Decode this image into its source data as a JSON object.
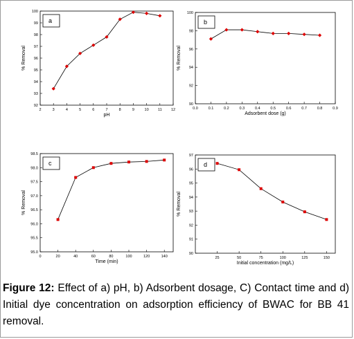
{
  "caption": {
    "label": "Figure 12:",
    "text": "Effect of a) pH, b) Adsorbent dosage, C) Contact time and d) Initial dye concentration on adsorption efficiency of BWAC for BB 41 removal."
  },
  "chart_data": [
    {
      "type": "line",
      "panel_label": "a",
      "xlabel": "pH",
      "ylabel": "% Removal",
      "xlim": [
        2,
        12
      ],
      "ylim": [
        92,
        100
      ],
      "xticks": [
        2,
        3,
        4,
        5,
        6,
        7,
        8,
        9,
        10,
        11,
        12
      ],
      "yticks": [
        92,
        93,
        94,
        95,
        96,
        97,
        98,
        99,
        100
      ],
      "x": [
        3,
        4,
        5,
        6,
        7,
        8,
        9,
        10,
        11
      ],
      "y": [
        93.4,
        95.3,
        96.4,
        97.1,
        97.8,
        99.3,
        99.9,
        99.8,
        99.6
      ],
      "color": "#dd0000",
      "marker": "diamond"
    },
    {
      "type": "line",
      "panel_label": "b",
      "xlabel": "Adsorbent dose (g)",
      "ylabel": "% Removal",
      "xlim": [
        0.0,
        0.9
      ],
      "ylim": [
        90,
        100
      ],
      "xticks": [
        "0.0",
        "0.1",
        "0.2",
        "0.3",
        "0.4",
        "0.5",
        "0.6",
        "0.7",
        "0.8",
        "0.9"
      ],
      "yticks": [
        90,
        92,
        94,
        96,
        98,
        100
      ],
      "x": [
        0.1,
        0.2,
        0.3,
        0.4,
        0.5,
        0.6,
        0.7,
        0.8
      ],
      "y": [
        97.1,
        98.1,
        98.1,
        97.9,
        97.7,
        97.7,
        97.6,
        97.5
      ],
      "color": "#dd0000",
      "marker": "diamond"
    },
    {
      "type": "line",
      "panel_label": "c",
      "xlabel": "Time (min)",
      "ylabel": "% Removal",
      "xlim": [
        0,
        150
      ],
      "ylim": [
        95.0,
        98.5
      ],
      "xticks": [
        0,
        20,
        40,
        60,
        80,
        100,
        120,
        140
      ],
      "yticks": [
        "95.0",
        "95.5",
        "96.0",
        "96.5",
        "97.0",
        "97.5",
        "98.0",
        "98.5"
      ],
      "x": [
        20,
        40,
        60,
        80,
        100,
        120,
        140
      ],
      "y": [
        96.15,
        97.65,
        98.0,
        98.15,
        98.2,
        98.22,
        98.27
      ],
      "color": "#dd0000",
      "marker": "square"
    },
    {
      "type": "line",
      "panel_label": "d",
      "xlabel": "Initial concentration (mg/L)",
      "ylabel": "% Removal",
      "xlim": [
        0,
        160
      ],
      "ylim": [
        90,
        97
      ],
      "xticks": [
        25,
        50,
        75,
        100,
        125,
        150
      ],
      "yticks": [
        90,
        91,
        92,
        93,
        94,
        95,
        96,
        97
      ],
      "x": [
        25,
        50,
        75,
        100,
        125,
        150
      ],
      "y": [
        96.4,
        95.95,
        94.6,
        93.65,
        92.95,
        92.4
      ],
      "color": "#dd0000",
      "marker": "square"
    }
  ]
}
